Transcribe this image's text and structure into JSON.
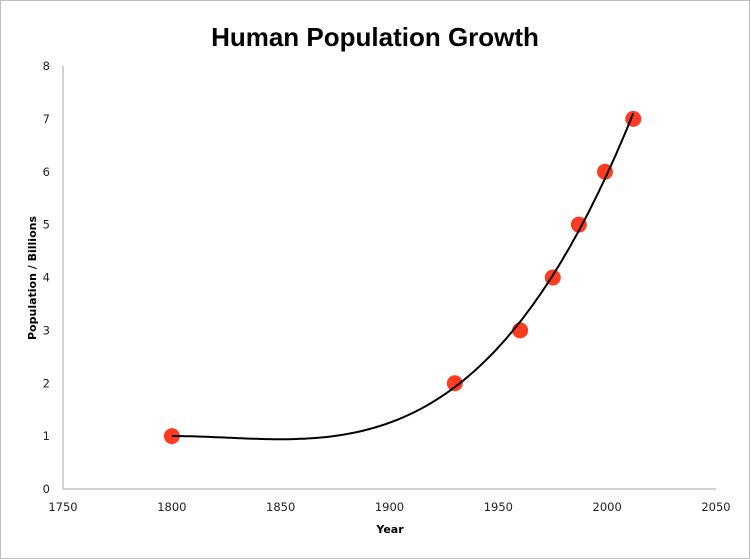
{
  "chart_data": {
    "type": "scatter",
    "title": "Human Population Growth",
    "xlabel": "Year",
    "ylabel": "Population / Billions",
    "xlim": [
      1750,
      2050
    ],
    "ylim": [
      0,
      8
    ],
    "x_ticks": [
      "1750",
      "1800",
      "1850",
      "1900",
      "1950",
      "2000",
      "2050"
    ],
    "y_ticks": [
      "0",
      "1",
      "2",
      "3",
      "4",
      "5",
      "6",
      "7",
      "8"
    ],
    "grid": false,
    "legend": null,
    "series": [
      {
        "name": "Population",
        "marker_color": "#ff2a0f",
        "x": [
          1800,
          1930,
          1960,
          1975,
          1987,
          1999,
          2012
        ],
        "y": [
          1,
          2,
          3,
          4,
          5,
          6,
          7
        ]
      }
    ],
    "trendline": {
      "type": "polynomial",
      "color": "#000000"
    }
  }
}
